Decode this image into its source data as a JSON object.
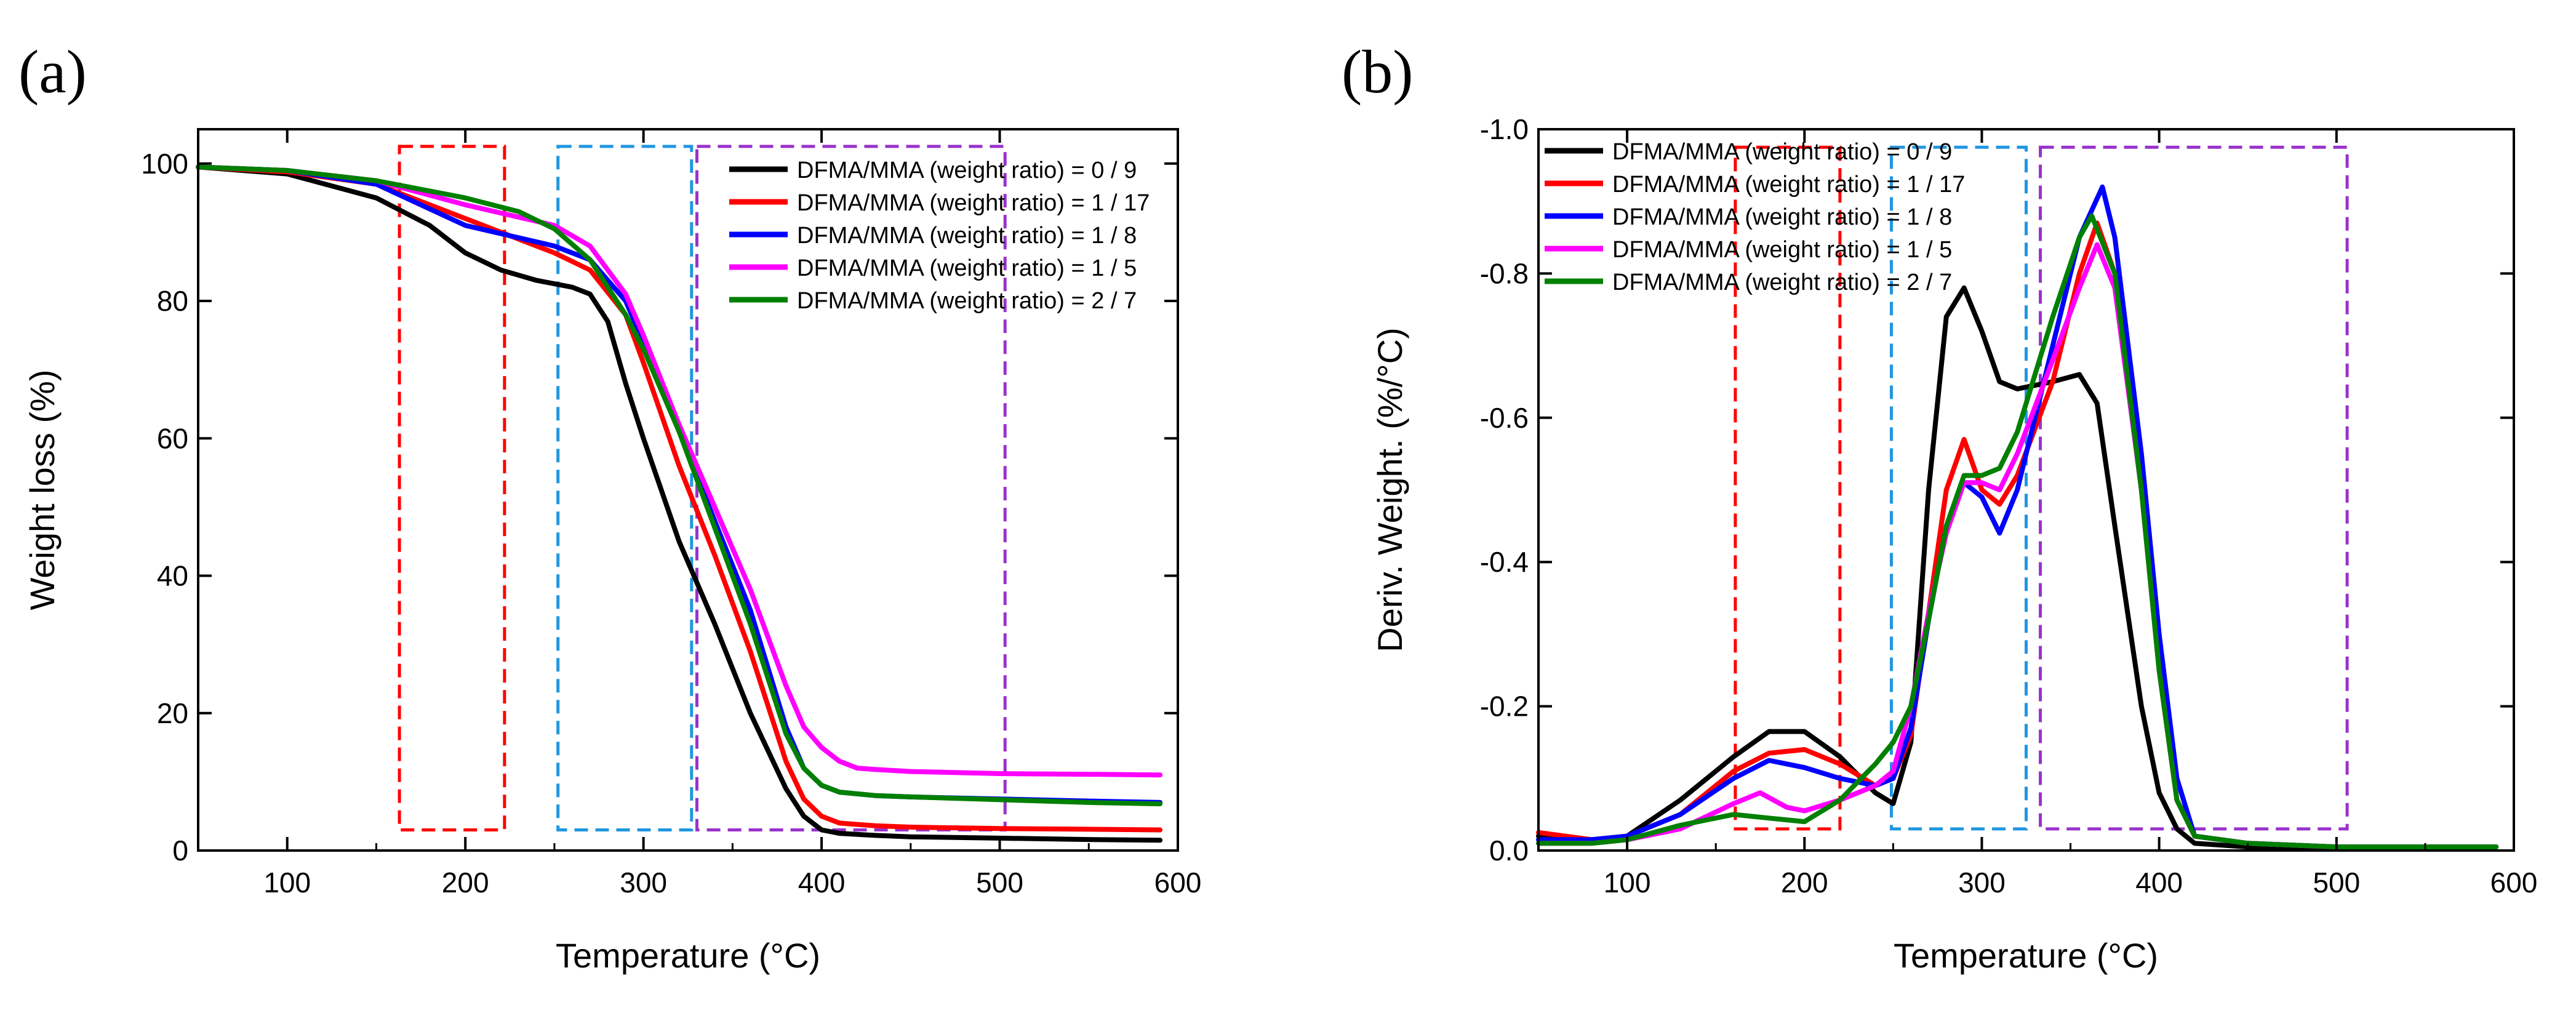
{
  "chart_data": [
    {
      "type": "line",
      "panel_label": "(a)",
      "xlabel": "Temperature (°C)",
      "ylabel": "Weight loss (%)",
      "xlim": [
        50,
        600
      ],
      "ylim": [
        0,
        105
      ],
      "xticks": [
        100,
        200,
        300,
        400,
        500,
        600
      ],
      "yticks": [
        0,
        20,
        40,
        60,
        80,
        100
      ],
      "y_inverted": false,
      "legend_position": "top-right",
      "series": [
        {
          "name": "DFMA/MMA (weight ratio) = 0 / 9",
          "color": "#000000",
          "x": [
            50,
            100,
            150,
            180,
            200,
            220,
            240,
            260,
            270,
            280,
            290,
            300,
            320,
            340,
            360,
            380,
            390,
            400,
            410,
            430,
            450,
            500,
            550,
            590
          ],
          "y": [
            99.5,
            98.5,
            95,
            91,
            87,
            84.5,
            83,
            82,
            81,
            77,
            68,
            60,
            45,
            33,
            20,
            9,
            5,
            3,
            2.5,
            2.2,
            2,
            1.8,
            1.6,
            1.5
          ]
        },
        {
          "name": "DFMA/MMA (weight ratio) = 1 / 17",
          "color": "#ff0000",
          "x": [
            50,
            100,
            150,
            200,
            250,
            270,
            290,
            300,
            320,
            340,
            360,
            380,
            390,
            400,
            410,
            430,
            450,
            500,
            550,
            590
          ],
          "y": [
            99.5,
            98.8,
            97,
            92,
            87,
            84.5,
            78,
            71,
            56,
            43,
            29,
            13,
            7.5,
            5,
            4,
            3.6,
            3.4,
            3.2,
            3.1,
            3
          ]
        },
        {
          "name": "DFMA/MMA (weight ratio) = 1 / 8",
          "color": "#0000ff",
          "x": [
            50,
            100,
            150,
            200,
            250,
            270,
            290,
            300,
            320,
            340,
            360,
            380,
            390,
            400,
            410,
            430,
            450,
            500,
            550,
            590
          ],
          "y": [
            99.5,
            99,
            97,
            91,
            88,
            86,
            80,
            74,
            61,
            48,
            35,
            18,
            12,
            9.5,
            8.5,
            8,
            7.8,
            7.5,
            7.2,
            7
          ]
        },
        {
          "name": "DFMA/MMA (weight ratio) = 1 / 5",
          "color": "#ff00ff",
          "x": [
            50,
            100,
            150,
            200,
            250,
            270,
            290,
            300,
            320,
            340,
            360,
            380,
            390,
            400,
            410,
            420,
            430,
            450,
            500,
            550,
            590
          ],
          "y": [
            99.5,
            99,
            97.5,
            94,
            91,
            88,
            81,
            75,
            62,
            50,
            38,
            24,
            18,
            15,
            13,
            12,
            11.8,
            11.5,
            11.2,
            11.1,
            11
          ]
        },
        {
          "name": "DFMA/MMA (weight ratio) = 2 / 7",
          "color": "#008000",
          "x": [
            50,
            100,
            150,
            200,
            230,
            250,
            270,
            290,
            300,
            320,
            340,
            360,
            380,
            390,
            400,
            410,
            430,
            450,
            500,
            550,
            590
          ],
          "y": [
            99.5,
            99,
            97.5,
            95,
            93,
            90.5,
            86,
            78,
            73,
            61,
            47,
            33,
            17,
            12,
            9.5,
            8.5,
            8,
            7.8,
            7.4,
            7,
            6.8
          ]
        }
      ],
      "boxes": [
        {
          "x_range": [
            163,
            222
          ],
          "y_range": [
            3,
            102.5
          ],
          "color": "#ff0000"
        },
        {
          "x_range": [
            252,
            327
          ],
          "y_range": [
            3,
            102.5
          ],
          "color": "#2196e0"
        },
        {
          "x_range": [
            330,
            503
          ],
          "y_range": [
            3,
            102.5
          ],
          "color": "#9932cc"
        }
      ]
    },
    {
      "type": "line",
      "panel_label": "(b)",
      "xlabel": "Temperature (°C)",
      "ylabel": "Deriv. Weight. (%/°C)",
      "xlim": [
        50,
        600
      ],
      "ylim": [
        0.0,
        -1.0
      ],
      "xticks": [
        100,
        200,
        300,
        400,
        500,
        600
      ],
      "yticks": [
        0.0,
        -0.2,
        -0.4,
        -0.6,
        -0.8,
        -1.0
      ],
      "ytick_labels": [
        "0.0",
        "-0.2",
        "-0.4",
        "-0.6",
        "-0.8",
        "-1.0"
      ],
      "y_inverted": true,
      "legend_position": "top-left",
      "series": [
        {
          "name": "DFMA/MMA (weight ratio) = 0 / 9",
          "color": "#000000",
          "x": [
            50,
            80,
            100,
            130,
            160,
            180,
            200,
            220,
            240,
            250,
            260,
            270,
            280,
            290,
            300,
            310,
            320,
            340,
            355,
            365,
            375,
            390,
            400,
            410,
            420,
            450,
            500,
            550,
            590
          ],
          "y": [
            -0.02,
            -0.015,
            -0.02,
            -0.07,
            -0.13,
            -0.165,
            -0.165,
            -0.13,
            -0.08,
            -0.065,
            -0.15,
            -0.5,
            -0.74,
            -0.78,
            -0.72,
            -0.65,
            -0.64,
            -0.65,
            -0.66,
            -0.62,
            -0.45,
            -0.2,
            -0.08,
            -0.03,
            -0.01,
            -0.005,
            -0.005,
            -0.005,
            -0.005
          ]
        },
        {
          "name": "DFMA/MMA (weight ratio) = 1 / 17",
          "color": "#ff0000",
          "x": [
            50,
            80,
            100,
            130,
            160,
            180,
            200,
            220,
            240,
            250,
            260,
            270,
            280,
            290,
            300,
            310,
            320,
            340,
            355,
            365,
            375,
            390,
            400,
            410,
            420,
            450,
            500,
            550,
            590
          ],
          "y": [
            -0.025,
            -0.015,
            -0.02,
            -0.05,
            -0.11,
            -0.135,
            -0.14,
            -0.12,
            -0.09,
            -0.1,
            -0.16,
            -0.33,
            -0.5,
            -0.57,
            -0.5,
            -0.48,
            -0.52,
            -0.65,
            -0.8,
            -0.87,
            -0.8,
            -0.5,
            -0.25,
            -0.07,
            -0.02,
            -0.01,
            -0.005,
            -0.005,
            -0.005
          ]
        },
        {
          "name": "DFMA/MMA (weight ratio) = 1 / 8",
          "color": "#0000ff",
          "x": [
            50,
            80,
            100,
            130,
            160,
            180,
            200,
            220,
            240,
            250,
            260,
            270,
            280,
            290,
            300,
            310,
            320,
            340,
            355,
            368,
            375,
            390,
            400,
            410,
            420,
            450,
            500,
            550,
            590
          ],
          "y": [
            -0.015,
            -0.015,
            -0.02,
            -0.05,
            -0.1,
            -0.125,
            -0.115,
            -0.1,
            -0.09,
            -0.1,
            -0.17,
            -0.32,
            -0.45,
            -0.51,
            -0.49,
            -0.44,
            -0.5,
            -0.7,
            -0.85,
            -0.92,
            -0.85,
            -0.55,
            -0.3,
            -0.1,
            -0.02,
            -0.01,
            -0.005,
            -0.005,
            -0.005
          ]
        },
        {
          "name": "DFMA/MMA (weight ratio) = 1 / 5",
          "color": "#ff00ff",
          "x": [
            50,
            80,
            100,
            130,
            160,
            175,
            190,
            200,
            220,
            240,
            250,
            260,
            270,
            280,
            290,
            300,
            310,
            320,
            340,
            355,
            365,
            375,
            390,
            400,
            410,
            420,
            450,
            500,
            550,
            590
          ],
          "y": [
            -0.01,
            -0.01,
            -0.015,
            -0.03,
            -0.065,
            -0.08,
            -0.06,
            -0.055,
            -0.07,
            -0.09,
            -0.11,
            -0.2,
            -0.33,
            -0.44,
            -0.51,
            -0.51,
            -0.5,
            -0.55,
            -0.68,
            -0.78,
            -0.84,
            -0.78,
            -0.5,
            -0.25,
            -0.07,
            -0.02,
            -0.01,
            -0.005,
            -0.005,
            -0.005
          ]
        },
        {
          "name": "DFMA/MMA (weight ratio) = 2 / 7",
          "color": "#008000",
          "x": [
            50,
            80,
            100,
            130,
            160,
            180,
            200,
            220,
            240,
            250,
            260,
            270,
            280,
            290,
            300,
            310,
            320,
            340,
            355,
            362,
            375,
            390,
            400,
            410,
            420,
            450,
            500,
            550,
            590
          ],
          "y": [
            -0.01,
            -0.01,
            -0.015,
            -0.035,
            -0.05,
            -0.045,
            -0.04,
            -0.07,
            -0.12,
            -0.15,
            -0.2,
            -0.32,
            -0.45,
            -0.52,
            -0.52,
            -0.53,
            -0.58,
            -0.74,
            -0.85,
            -0.88,
            -0.8,
            -0.5,
            -0.25,
            -0.07,
            -0.02,
            -0.01,
            -0.005,
            -0.005,
            -0.005
          ]
        }
      ],
      "boxes": [
        {
          "x_range": [
            161,
            220
          ],
          "y_range": [
            -0.03,
            -0.975
          ],
          "color": "#ff0000"
        },
        {
          "x_range": [
            249,
            325
          ],
          "y_range": [
            -0.03,
            -0.975
          ],
          "color": "#2196e0"
        },
        {
          "x_range": [
            333,
            506
          ],
          "y_range": [
            -0.03,
            -0.975
          ],
          "color": "#9932cc"
        }
      ]
    }
  ]
}
